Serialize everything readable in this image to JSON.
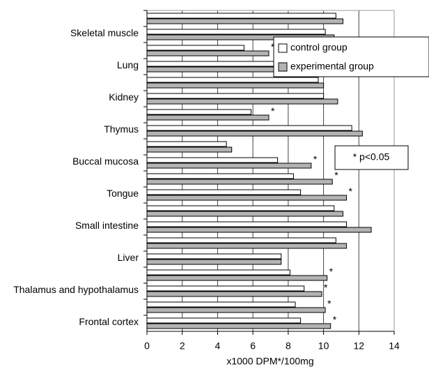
{
  "chart_data": {
    "type": "hbar",
    "categories": [
      null,
      "Skeletal muscle",
      null,
      "Lung",
      null,
      "Kidney",
      null,
      "Thymus",
      null,
      "Buccal mucosa",
      null,
      "Tongue",
      null,
      "Small intestine",
      null,
      "Liver",
      null,
      "Thalamus and hypothalamus",
      null,
      "Frontal cortex"
    ],
    "series": [
      {
        "name": "control group",
        "color": "#ffffff",
        "values": [
          10.7,
          10.1,
          5.5,
          9.5,
          9.7,
          10.0,
          5.9,
          11.6,
          4.5,
          7.4,
          8.3,
          8.7,
          10.6,
          11.3,
          10.7,
          7.6,
          8.1,
          8.9,
          8.4,
          8.7
        ]
      },
      {
        "name": "experimental group",
        "color": "#b3b3b3",
        "values": [
          11.1,
          10.6,
          6.9,
          10.0,
          10.0,
          10.8,
          6.9,
          12.2,
          4.8,
          9.3,
          10.5,
          11.3,
          11.1,
          12.7,
          11.3,
          7.6,
          10.2,
          9.9,
          10.1,
          10.4
        ]
      }
    ],
    "significance": [
      null,
      null,
      "*",
      null,
      null,
      null,
      "*",
      null,
      null,
      "*",
      "*",
      "*",
      null,
      null,
      null,
      null,
      "*",
      "*",
      "*",
      "*"
    ],
    "note": "* p<0.05",
    "xlabel": "x1000 DPM*/100mg",
    "xlim": [
      0,
      14
    ],
    "xticks": [
      0,
      2,
      4,
      6,
      8,
      10,
      12,
      14
    ],
    "grid": true,
    "legend": "top-right"
  }
}
